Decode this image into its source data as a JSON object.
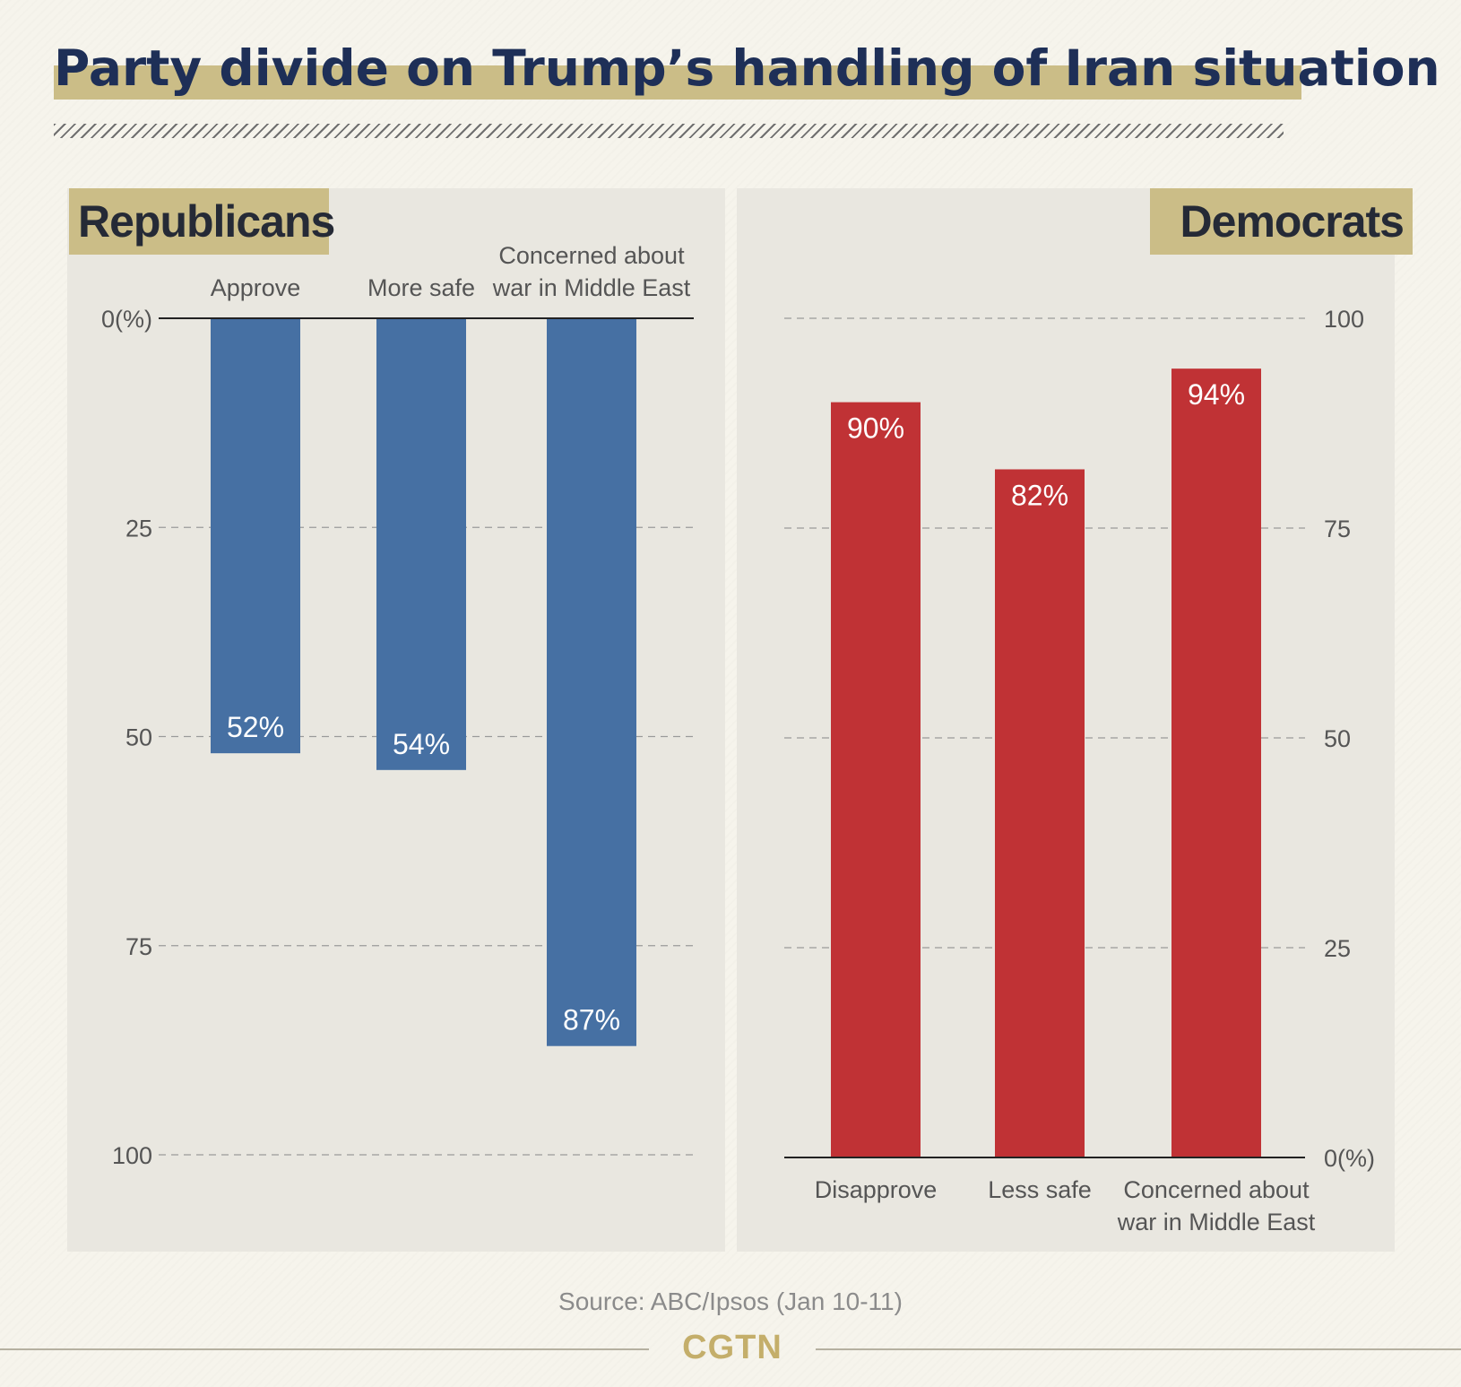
{
  "title": "Party divide on Trump’s handling of Iran situation",
  "source": "Source: ABC/Ipsos (Jan 10-11)",
  "logo": "CGTN",
  "colors": {
    "republican_bar": "#4670a3",
    "democrat_bar": "#c03235",
    "tag_bg": "#cbbd87",
    "title": "#1e2f57"
  },
  "chart_data": [
    {
      "type": "bar",
      "panel_label": "Republicans",
      "orientation": "downward",
      "categories": [
        "Approve",
        "More safe",
        "Concerned about war in Middle East"
      ],
      "category_lines": [
        [
          "Approve"
        ],
        [
          "More safe"
        ],
        [
          "Concerned about",
          "war in Middle East"
        ]
      ],
      "values": [
        52,
        54,
        87
      ],
      "data_labels": [
        "52%",
        "54%",
        "87%"
      ],
      "ylim": [
        0,
        100
      ],
      "yticks": [
        0,
        25,
        50,
        75,
        100
      ],
      "ytick_labels": [
        "0(%)",
        "25",
        "50",
        "75",
        "100"
      ],
      "grid": true
    },
    {
      "type": "bar",
      "panel_label": "Democrats",
      "orientation": "upward",
      "categories": [
        "Disapprove",
        "Less safe",
        "Concerned about war in Middle East"
      ],
      "category_lines": [
        [
          "Disapprove"
        ],
        [
          "Less safe"
        ],
        [
          "Concerned about",
          "war in Middle East"
        ]
      ],
      "values": [
        90,
        82,
        94
      ],
      "data_labels": [
        "90%",
        "82%",
        "94%"
      ],
      "ylim": [
        0,
        100
      ],
      "yticks": [
        0,
        25,
        50,
        75,
        100
      ],
      "ytick_labels": [
        "0(%)",
        "25",
        "50",
        "75",
        "100"
      ],
      "grid": true
    }
  ]
}
